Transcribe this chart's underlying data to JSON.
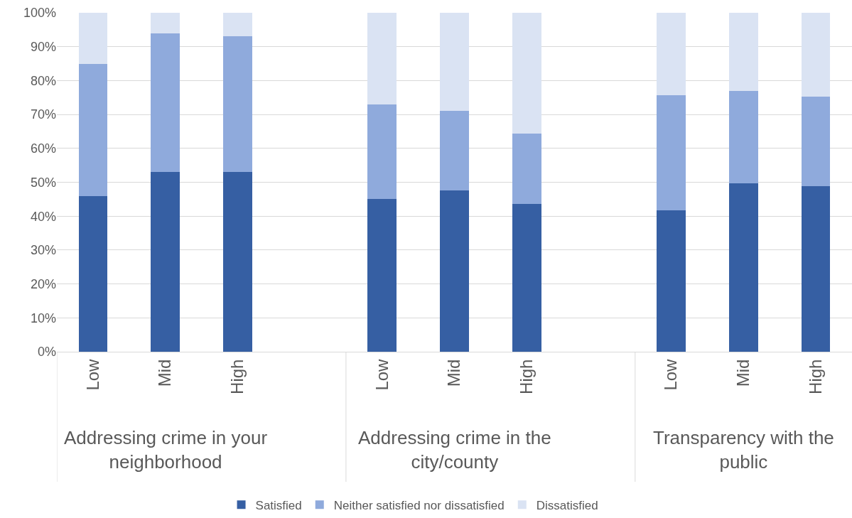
{
  "chart_data": {
    "type": "bar",
    "stacked": true,
    "categories": [
      "Low",
      "Mid",
      "High",
      null,
      "Low",
      "Mid",
      "High",
      null,
      "Low",
      "Mid",
      "High"
    ],
    "series": [
      {
        "name": "Satisfied",
        "color": "#365fa3",
        "values": [
          46,
          53,
          53,
          null,
          45,
          47.5,
          43.6,
          null,
          41.7,
          49.6,
          48.8
        ]
      },
      {
        "name": "Neither satisfied nor dissatisfied",
        "color": "#8faadc",
        "values": [
          39,
          41,
          40,
          null,
          28,
          23.5,
          20.7,
          null,
          34,
          27.4,
          26.5
        ]
      },
      {
        "name": "Dissatisfied",
        "color": "#dae3f3",
        "values": [
          15,
          6,
          7,
          null,
          27,
          29,
          35.7,
          null,
          24.3,
          23,
          24.7
        ]
      }
    ],
    "annotations": [
      "Addressing crime in your neighborhood",
      "Addressing crime in the city/county",
      "Transparency with the public"
    ],
    "ylim": [
      0,
      100
    ],
    "yticks": [
      {
        "value": 0,
        "label": "0%"
      },
      {
        "value": 10,
        "label": "10%"
      },
      {
        "value": 20,
        "label": "20%"
      },
      {
        "value": 30,
        "label": "30%"
      },
      {
        "value": 40,
        "label": "40%"
      },
      {
        "value": 50,
        "label": "50%"
      },
      {
        "value": 60,
        "label": "60%"
      },
      {
        "value": 70,
        "label": "70%"
      },
      {
        "value": 80,
        "label": "80%"
      },
      {
        "value": 90,
        "label": "90%"
      },
      {
        "value": 100,
        "label": "100%"
      }
    ],
    "grid": "y",
    "legend": "bottom"
  }
}
